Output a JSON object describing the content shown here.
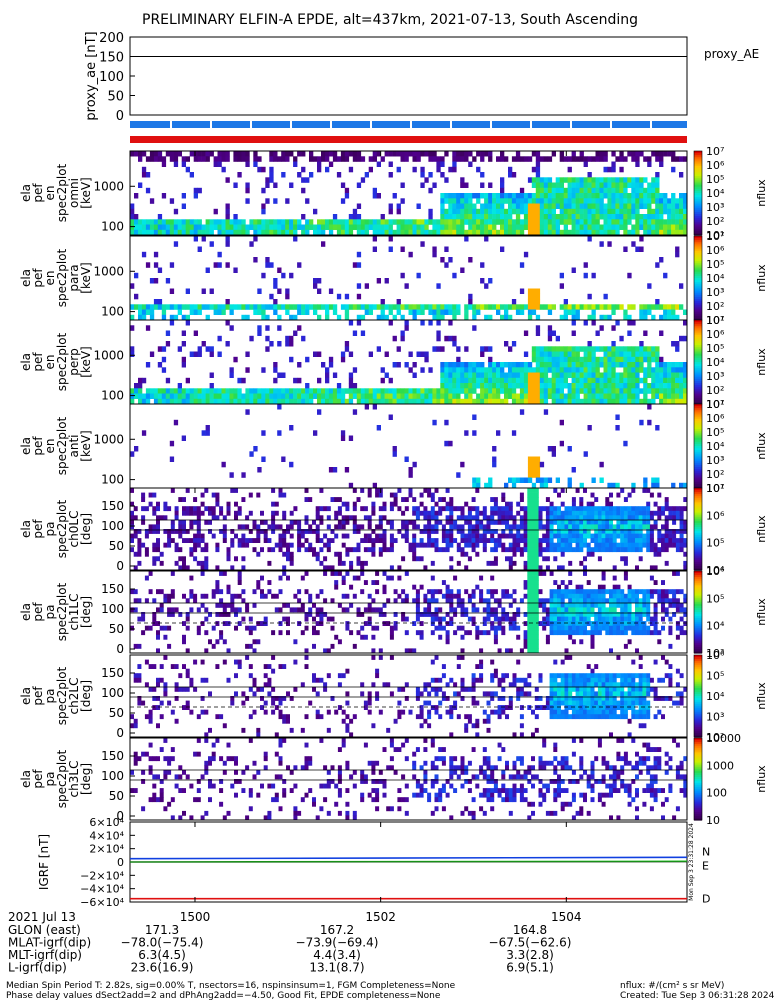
{
  "title": "PRELIMINARY ELFIN-A EPDE, alt=437km, 2021-07-13, South Ascending",
  "proxy_panel": {
    "ylabel": "proxy_ae [nT]",
    "legend": "proxy_AE",
    "yticks": [
      "200",
      "150",
      "100",
      "50",
      "0"
    ],
    "ylim": [
      0,
      200
    ],
    "line_value": 150
  },
  "status_bars": [
    {
      "name": "blue",
      "color": "#1e78e6"
    },
    {
      "name": "red",
      "color": "#e01010"
    }
  ],
  "spec_panels": [
    {
      "ylabel": [
        "ela",
        "pef",
        "en",
        "spec2plot",
        "omni",
        "[keV]"
      ],
      "yticks": [
        "1000",
        "100"
      ],
      "zticks": [
        "10⁷",
        "10⁶",
        "10⁵",
        "10⁴",
        "10³",
        "10²",
        "10¹"
      ],
      "zlabel": "nflux",
      "seed": 11,
      "density": 0.55,
      "profile": "omni"
    },
    {
      "ylabel": [
        "ela",
        "pef",
        "en",
        "spec2plot",
        "para",
        "[keV]"
      ],
      "yticks": [
        "1000",
        "100"
      ],
      "zticks": [
        "10⁷",
        "10⁶",
        "10⁵",
        "10⁴",
        "10³",
        "10²",
        "10¹"
      ],
      "zlabel": "nflux",
      "seed": 23,
      "density": 0.25,
      "profile": "para"
    },
    {
      "ylabel": [
        "ela",
        "pef",
        "en",
        "spec2plot",
        "perp",
        "[keV]"
      ],
      "yticks": [
        "1000",
        "100"
      ],
      "zticks": [
        "10⁷",
        "10⁶",
        "10⁵",
        "10⁴",
        "10³",
        "10²",
        "10¹"
      ],
      "zlabel": "nflux",
      "seed": 37,
      "density": 0.5,
      "profile": "omni"
    },
    {
      "ylabel": [
        "ela",
        "pef",
        "en",
        "spec2plot",
        "anti",
        "[keV]"
      ],
      "yticks": [
        "1000",
        "100"
      ],
      "zticks": [
        "10⁷",
        "10⁶",
        "10⁵",
        "10⁴",
        "10³",
        "10²",
        "10¹"
      ],
      "zlabel": "nflux",
      "seed": 41,
      "density": 0.15,
      "profile": "sparse"
    }
  ],
  "pa_panels": [
    {
      "ylabel": [
        "ela",
        "pef",
        "pa",
        "spec2plot",
        "ch0LC",
        "[deg]"
      ],
      "yticks": [
        "150",
        "100",
        "50",
        "0"
      ],
      "zticks": [
        "10⁷",
        "10⁶",
        "10⁵",
        "10⁴"
      ],
      "zlabel": "nflux",
      "seed": 53,
      "density": 0.7,
      "dashed": false
    },
    {
      "ylabel": [
        "ela",
        "pef",
        "pa",
        "spec2plot",
        "ch1LC",
        "[deg]"
      ],
      "yticks": [
        "150",
        "100",
        "50",
        "0"
      ],
      "zticks": [
        "10⁶",
        "10⁵",
        "10⁴",
        "10³"
      ],
      "zlabel": "nflux",
      "seed": 61,
      "density": 0.5,
      "dashed": true
    },
    {
      "ylabel": [
        "ela",
        "pef",
        "pa",
        "spec2plot",
        "ch2LC",
        "[deg]"
      ],
      "yticks": [
        "150",
        "100",
        "50",
        "0"
      ],
      "zticks": [
        "10⁶",
        "10⁵",
        "10⁴",
        "10³",
        "10²"
      ],
      "zlabel": "nflux",
      "seed": 71,
      "density": 0.3,
      "dashed": true
    },
    {
      "ylabel": [
        "ela",
        "pef",
        "pa",
        "spec2plot",
        "ch3LC",
        "[deg]"
      ],
      "yticks": [
        "150",
        "100",
        "50",
        "0"
      ],
      "zticks": [
        "10000",
        "1000",
        "100",
        "10"
      ],
      "zlabel": "nflux",
      "seed": 83,
      "density": 0.35,
      "dashed": false
    }
  ],
  "igrf_panel": {
    "ylabel": "IGRF [nT]",
    "yticks": [
      "6×10⁴",
      "4×10⁴",
      "2×10⁴",
      "0",
      "−2×10⁴",
      "−4×10⁴",
      "−6×10⁴"
    ],
    "ylim": [
      -60000,
      60000
    ],
    "legend": [
      "N",
      "E",
      "D"
    ],
    "colors": {
      "N": "#1040e0",
      "E": "#20c020",
      "D": "#e01010"
    },
    "sidebar": "Mon Sep  3 23:31:28 2024"
  },
  "chart_data": {
    "type": "heatmap",
    "title": "PRELIMINARY ELFIN-A EPDE, alt=437km, 2021-07-13, South Ascending",
    "x_range_min": [
      1499.3,
      1505.3
    ],
    "x_ticks": [
      "1500",
      "1502",
      "1504"
    ],
    "series": [
      {
        "name": "proxy_AE",
        "values": [
          150,
          150
        ]
      },
      {
        "name": "N",
        "values": [
          5000,
          7000
        ]
      },
      {
        "name": "E",
        "values": [
          0,
          1000
        ]
      },
      {
        "name": "D",
        "values": [
          -55000,
          -55000
        ]
      }
    ]
  },
  "ephemeris": {
    "date": "2021 Jul 13",
    "rows": [
      {
        "label": "GLON (east)",
        "values": [
          "171.3",
          "167.2",
          "164.8"
        ]
      },
      {
        "label": "MLAT-igrf(dip)",
        "values": [
          "−78.0(−75.4)",
          "−73.9(−69.4)",
          "−67.5(−62.6)"
        ]
      },
      {
        "label": "MLT-igrf(dip)",
        "values": [
          "6.3(4.5)",
          "4.4(3.4)",
          "3.3(2.8)"
        ]
      },
      {
        "label": "L-igrf(dip)",
        "values": [
          "23.6(16.9)",
          "13.1(8.7)",
          "6.9(5.1)"
        ]
      }
    ]
  },
  "footer": {
    "line1": "Median Spin Period T: 2.82s, sig=0.00% T, nsectors=16, nspinsinsum=1, FGM Completeness=None",
    "line2": "Phase delay values dSect2add=2 and dPhAng2add=−4.50, Good Fit, EPDE completeness=None",
    "units": "nflux: #/(cm² s sr MeV)",
    "created": "Created: Tue Sep  3 06:31:28 2024"
  }
}
